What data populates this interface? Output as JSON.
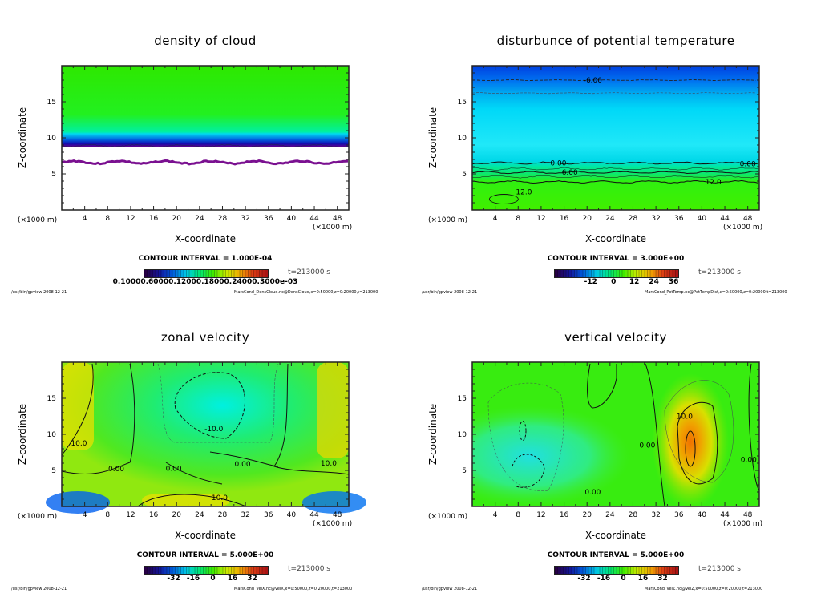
{
  "chart_data": [
    {
      "type": "heatmap",
      "id": "dens",
      "title": "density of cloud",
      "xlabel": "X-coordinate",
      "ylabel": "Z-coordinate",
      "x_unit": "(×1000 m)",
      "y_unit": "(×1000 m)",
      "xlim": [
        0,
        50
      ],
      "ylim": [
        0,
        20
      ],
      "xticks": [
        4,
        8,
        12,
        16,
        20,
        24,
        28,
        32,
        36,
        40,
        44,
        48
      ],
      "yticks": [
        5,
        10,
        15
      ],
      "contour_interval": "CONTOUR INTERVAL = 1.000E-04",
      "time": "t=213000 s",
      "colorbar_labels_text": "0.10000.60000.12000.18000.24000.3000e-03",
      "colorbar_labels": [
        "0.1000",
        "0.6000e-03",
        "0.1200e-03",
        "0.1800e-03",
        "0.2400e-03",
        "0.3000e-03"
      ],
      "footer_left": "/usr/bin/gpview   2008-12-21",
      "footer_right": "MarsCond_DensCloud.nc@DensCloud,x=0:50000,z=0:20000,t=213000",
      "description": "cloud layer between z≈6 and z≈9 km; no cloud below ~6 km",
      "regions": [
        {
          "zmin": 9,
          "zmax": 20,
          "value": "low (green)"
        },
        {
          "zmin": 8,
          "zmax": 9,
          "value": "medium (cyan/blue)"
        },
        {
          "zmin": 6.5,
          "zmax": 8,
          "value": "high (dark blue/purple)"
        },
        {
          "zmin": 0,
          "zmax": 6.5,
          "value": "none (white)"
        }
      ]
    },
    {
      "type": "heatmap",
      "id": "temp",
      "title": "disturbunce of potential temperature",
      "xlabel": "X-coordinate",
      "ylabel": "Z-coordinate",
      "x_unit": "(×1000 m)",
      "y_unit": "(×1000 m)",
      "xlim": [
        0,
        50
      ],
      "ylim": [
        0,
        20
      ],
      "xticks": [
        4,
        8,
        12,
        16,
        20,
        24,
        28,
        32,
        36,
        40,
        44,
        48
      ],
      "yticks": [
        5,
        10,
        15
      ],
      "contour_interval": "CONTOUR INTERVAL = 3.000E+00",
      "time": "t=213000 s",
      "colorbar_labels": [
        "-12",
        "0",
        "12",
        "24",
        "36"
      ],
      "footer_left": "/usr/bin/gpview   2008-12-21",
      "footer_right": "MarsCond_PotTemp.nc@PotTempDist,x=0:50000,z=0:20000,t=213000",
      "contour_labels": [
        {
          "text": "-6.00",
          "x": 21,
          "z": 18
        },
        {
          "text": "0.00",
          "x": 15,
          "z": 6.5
        },
        {
          "text": "6.00",
          "x": 17,
          "z": 5.2
        },
        {
          "text": "12.0",
          "x": 42,
          "z": 3.9
        },
        {
          "text": "0.00",
          "x": 48,
          "z": 6.4
        },
        {
          "text": "12.0",
          "x": 9,
          "z": 2.5
        }
      ],
      "contours": [
        {
          "level": -6,
          "z": 18,
          "style": "dashed"
        },
        {
          "level": -3,
          "z": 16.2,
          "style": "dashed-thin"
        },
        {
          "level": 0,
          "z": 6.5,
          "style": "solid"
        },
        {
          "level": 6,
          "z": 5.2,
          "style": "solid"
        },
        {
          "level": 12,
          "z": 3.9,
          "style": "solid"
        }
      ]
    },
    {
      "type": "heatmap",
      "id": "velx",
      "title": "zonal velocity",
      "xlabel": "X-coordinate",
      "ylabel": "Z-coordinate",
      "x_unit": "(×1000 m)",
      "y_unit": "(×1000 m)",
      "xlim": [
        0,
        50
      ],
      "ylim": [
        0,
        20
      ],
      "xticks": [
        4,
        8,
        12,
        16,
        20,
        24,
        28,
        32,
        36,
        40,
        44,
        48
      ],
      "yticks": [
        5,
        10,
        15
      ],
      "contour_interval": "CONTOUR INTERVAL = 5.000E+00",
      "time": "t=213000 s",
      "colorbar_labels": [
        "-32",
        "-16",
        "0",
        "16",
        "32"
      ],
      "footer_left": "/usr/bin/gpview   2008-12-21",
      "footer_right": "MarsCond_VelX.nc@VelX,x=0:50000,z=0:20000,t=213000",
      "contour_labels": [
        {
          "text": "10.0",
          "x": 3,
          "z": 8.8
        },
        {
          "text": "0.00",
          "x": 9.5,
          "z": 5.2
        },
        {
          "text": "0.00",
          "x": 19.5,
          "z": 5.3
        },
        {
          "text": "-10.0",
          "x": 26.5,
          "z": 10.8
        },
        {
          "text": "0.00",
          "x": 31.5,
          "z": 5.9
        },
        {
          "text": "10.0",
          "x": 46.5,
          "z": 6.0
        },
        {
          "text": "10.0",
          "x": 27.5,
          "z": 1.2
        }
      ]
    },
    {
      "type": "heatmap",
      "id": "velz",
      "title": "vertical velocity",
      "xlabel": "X-coordinate",
      "ylabel": "Z-coordinate",
      "x_unit": "(×1000 m)",
      "y_unit": "(×1000 m)",
      "xlim": [
        0,
        50
      ],
      "ylim": [
        0,
        20
      ],
      "xticks": [
        4,
        8,
        12,
        16,
        20,
        24,
        28,
        32,
        36,
        40,
        44,
        48
      ],
      "yticks": [
        5,
        10,
        15
      ],
      "contour_interval": "CONTOUR INTERVAL = 5.000E+00",
      "time": "t=213000 s",
      "colorbar_labels": [
        "-32",
        "-16",
        "0",
        "16",
        "32"
      ],
      "footer_left": "/usr/bin/gpview   2008-12-21",
      "footer_right": "MarsCond_VelZ.nc@VelZ,x=0:50000,z=0:20000,t=213000",
      "contour_labels": [
        {
          "text": "10.0",
          "x": 37,
          "z": 12.5
        },
        {
          "text": "0.00",
          "x": 30.5,
          "z": 8.5
        },
        {
          "text": "0.00",
          "x": 48.5,
          "z": 6.5
        },
        {
          "text": "0.00",
          "x": 21,
          "z": 2.0
        }
      ]
    }
  ]
}
